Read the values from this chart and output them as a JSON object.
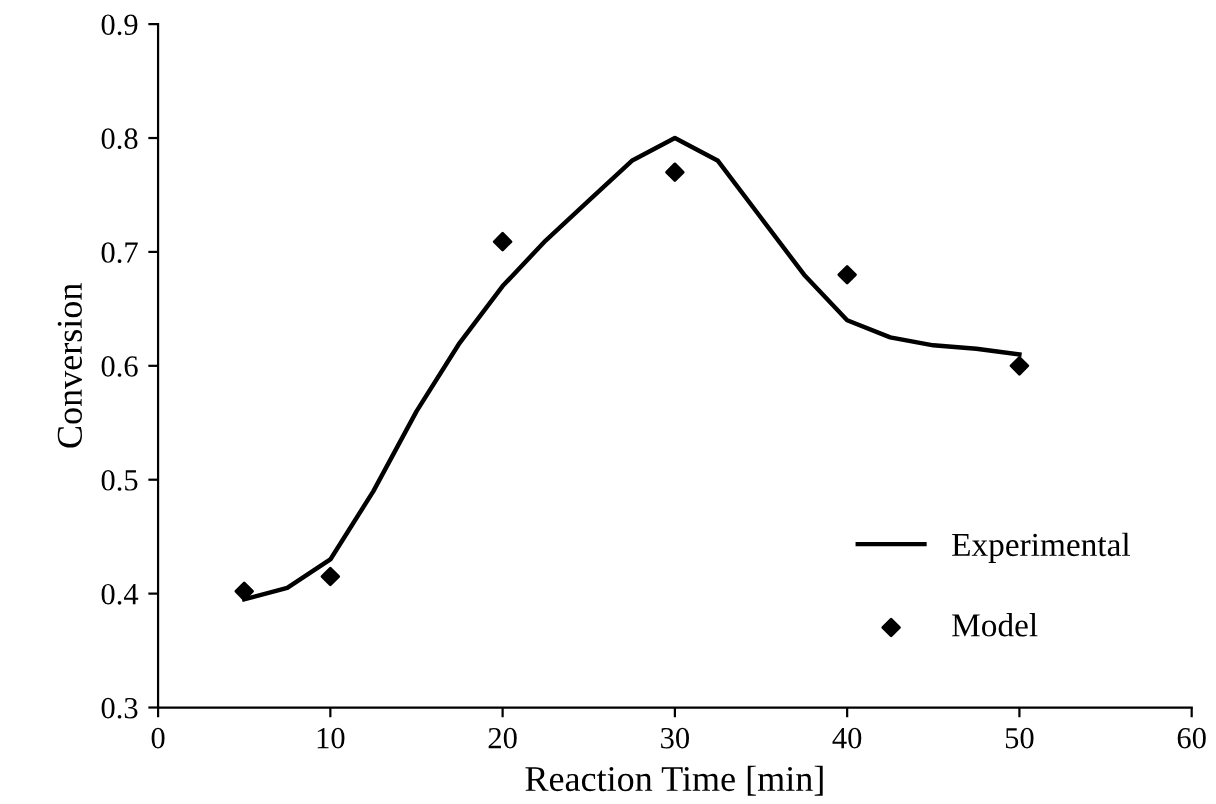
{
  "chart_data": {
    "type": "line",
    "xlabel": "Reaction Time [min]",
    "ylabel": "Conversion",
    "xlim": [
      0,
      60
    ],
    "xticks": [
      0,
      10,
      20,
      30,
      40,
      50,
      60
    ],
    "ylim": [
      0.3,
      0.9
    ],
    "yticks": [
      0.3,
      0.4,
      0.5,
      0.6,
      0.7,
      0.8,
      0.9
    ],
    "grid": false,
    "legend": "bottom right",
    "series": [
      {
        "name": "Experimental",
        "color": "#000000",
        "marker": "none",
        "line_style": "solid",
        "x": [
          5,
          7.5,
          10,
          12.5,
          15,
          17.5,
          20,
          22.5,
          25,
          27.5,
          30,
          32.5,
          35,
          37.5,
          40,
          42.5,
          45,
          47.5,
          50
        ],
        "values": [
          0.395,
          0.405,
          0.43,
          0.49,
          0.56,
          0.62,
          0.67,
          0.71,
          0.745,
          0.78,
          0.8,
          0.78,
          0.73,
          0.68,
          0.64,
          0.625,
          0.618,
          0.615,
          0.61
        ]
      },
      {
        "name": "Model",
        "type": "scatter",
        "color": "#000000",
        "marker": "diamond",
        "x": [
          5,
          10,
          20,
          30,
          40,
          50
        ],
        "values": [
          0.402,
          0.415,
          0.709,
          0.77,
          0.68,
          0.6
        ]
      }
    ]
  }
}
